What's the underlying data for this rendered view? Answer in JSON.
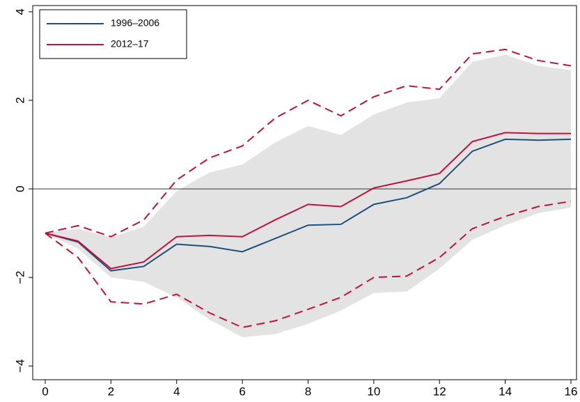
{
  "chart_data": {
    "type": "line",
    "x": [
      0,
      1,
      2,
      3,
      4,
      5,
      6,
      7,
      8,
      9,
      10,
      11,
      12,
      13,
      14,
      15,
      16
    ],
    "series": [
      {
        "name": "1996–2006",
        "color": "#1f4e79",
        "values": [
          -1,
          -1.2,
          -1.85,
          -1.75,
          -1.25,
          -1.3,
          -1.42,
          -1.12,
          -0.82,
          -0.8,
          -0.35,
          -0.2,
          0.12,
          0.85,
          1.12,
          1.1,
          1.12
        ]
      },
      {
        "name": "2012–17",
        "color": "#c0103c",
        "values": [
          -1,
          -1.18,
          -1.8,
          -1.65,
          -1.08,
          -1.05,
          -1.08,
          -0.7,
          -0.35,
          -0.4,
          0.02,
          0.18,
          0.35,
          1.07,
          1.27,
          1.25,
          1.25
        ]
      }
    ],
    "interval": {
      "color": "#c0103c",
      "upper": [
        -1,
        -0.83,
        -1.08,
        -0.7,
        0.2,
        0.7,
        0.97,
        1.6,
        2.0,
        1.65,
        2.08,
        2.33,
        2.25,
        3.05,
        3.15,
        2.9,
        2.78
      ],
      "lower": [
        -1,
        -1.55,
        -2.55,
        -2.6,
        -2.38,
        -2.8,
        -3.13,
        -2.98,
        -2.72,
        -2.45,
        -2.0,
        -1.97,
        -1.55,
        -0.9,
        -0.62,
        -0.4,
        -0.28
      ]
    },
    "band": {
      "color": "#e3e3e3",
      "upper": [
        -1,
        -0.9,
        -1.1,
        -0.85,
        -0.05,
        0.37,
        0.55,
        1.05,
        1.42,
        1.22,
        1.68,
        1.95,
        2.05,
        2.87,
        3.03,
        2.78,
        2.68
      ],
      "lower": [
        -1,
        -1.35,
        -2.0,
        -2.1,
        -2.45,
        -2.95,
        -3.35,
        -3.28,
        -3.05,
        -2.75,
        -2.35,
        -2.32,
        -1.8,
        -1.15,
        -0.82,
        -0.55,
        -0.42
      ]
    },
    "hline": 0,
    "xlim": [
      -0.38,
      16.17
    ],
    "ylim": [
      -4.31,
      4.14
    ],
    "xticks": [
      0,
      2,
      4,
      6,
      8,
      10,
      12,
      14,
      16
    ],
    "yticks": [
      {
        "value": -4,
        "label": "−4"
      },
      {
        "value": -2,
        "label": "−2"
      },
      0,
      2,
      4
    ],
    "legend": "top-left"
  }
}
